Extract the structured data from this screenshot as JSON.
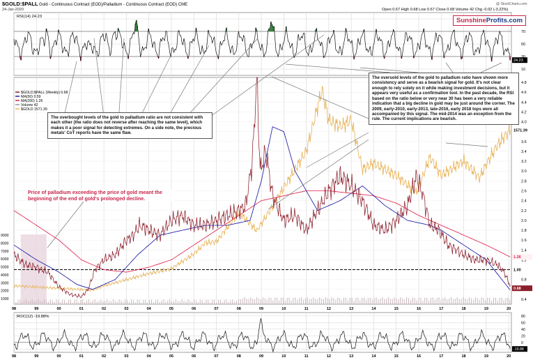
{
  "header": {
    "symbol": "$GOLD:$PALL",
    "subtitle": "Gold - Continuous Contract (EOD)/Palladium - Continuous Contract (EOD)  CME",
    "date": "24-Jan-2020",
    "quote": "Open 0.67  High 0.68  Low 0.67  Close 0.68  Volume 42  Chg -0.02 (-3.22%)",
    "credit": "@ StockCharts.com"
  },
  "logo": {
    "part1": "Sunshine",
    "part2": "Profits.com",
    "color1": "#c8264b",
    "color2": "#1f3b88"
  },
  "annotations": {
    "overbought": "The overbought levels of the gold to palladium ratio are not consistent with each other (the ratio does not reverse after reaching the same level), which makes it a poor signal for detecting extremes. On a side note, the precious metals' CoT reports have the same flaw.",
    "oversold": "The oversold levels of the gold to palladium ratio have shown more consistency and serve as a bearish signal for gold. It's not clear enough to rely solely on it while making investment decisions, but it appears very useful as a confirmation tool. In the past decade, the RSI based on the ratio below or very near 30 has been a very reliable indication that a big decline in gold may be just around the corner. The 2009, early-2010, early-2013, late-2016, early 2018 tops were all accompanied by this signal. The mid-2014 was an exception from the rule. The current implications are bearish.",
    "palladium_note": "Price of palladium exceeding the price of gold meant the beginning of the end of gold's prolonged decline."
  },
  "colors": {
    "ratio": "#8b1e2b",
    "ma50": "#1a1aa8",
    "ma200": "#e0224a",
    "gold": "#e8b45a",
    "grid": "#d6d6d6",
    "accent": "#c8264b",
    "rsi_fill_ob": "#2f7d3a",
    "rsi_fill_os": "#c8264b"
  },
  "chart_data": [
    {
      "type": "line",
      "panel": "RSI",
      "legend": "RSI(14) 24.23",
      "ylim": [
        0,
        100
      ],
      "yticks": [
        "90",
        "70",
        "50",
        "30",
        "10"
      ],
      "reference_lines": [
        70,
        30
      ],
      "last_value": 24.23,
      "overbought_years": [
        1999,
        2002,
        2003,
        2009
      ],
      "oversold_years": [
        1999,
        2001
      ]
    },
    {
      "type": "line",
      "panel": "Main",
      "legend": [
        {
          "label": "$GOLD:$PALL (Weekly) 0.68",
          "color": "#8b1e2b"
        },
        {
          "label": "MA(50) 0.59",
          "color": "#1a1aa8"
        },
        {
          "label": "MA(200) 1.26",
          "color": "#e0224a"
        },
        {
          "label": "Volume 42",
          "color": "#999999"
        },
        {
          "label": "$GOLD 1571.39",
          "color": "#e8b45a"
        }
      ],
      "ylim_right": [
        0.3,
        4.9
      ],
      "right_ticks": [
        "4.8",
        "4.6",
        "4.4",
        "4.2",
        "4.0",
        "3.8",
        "3.6",
        "3.4",
        "3.2",
        "3.0",
        "2.8",
        "2.6",
        "2.4",
        "2.2",
        "2.0",
        "1.8",
        "1.6",
        "1.4",
        "1.2",
        "1.0",
        "0.8",
        "0.6",
        "0.4"
      ],
      "left_ticks": [
        "9000",
        "8000",
        "7000",
        "6000",
        "5000",
        "4000",
        "3000",
        "2000",
        "1000"
      ],
      "right_labels": {
        "gold": "1571.39",
        "ma200": "1.26",
        "ratio": "0.68",
        "parity": "1.00"
      },
      "parity_line": 1.0,
      "x_years": [
        "98",
        "99",
        "00",
        "01",
        "02",
        "03",
        "04",
        "05",
        "06",
        "07",
        "08",
        "09",
        "10",
        "11",
        "12",
        "13",
        "14",
        "15",
        "16",
        "17",
        "18",
        "19",
        "20"
      ],
      "series": [
        {
          "name": "$GOLD:$PALL",
          "x": [
            1998.0,
            1998.5,
            1999.0,
            1999.5,
            2000.0,
            2000.5,
            2001.0,
            2001.3,
            2001.6,
            2002.0,
            2002.5,
            2003.0,
            2003.3,
            2003.6,
            2004.0,
            2004.5,
            2005.0,
            2005.5,
            2006.0,
            2006.5,
            2007.0,
            2007.5,
            2008.0,
            2008.3,
            2008.6,
            2008.8,
            2008.95,
            2009.2,
            2009.5,
            2010.0,
            2010.5,
            2011.0,
            2011.5,
            2012.0,
            2012.5,
            2013.0,
            2013.5,
            2014.0,
            2014.5,
            2015.0,
            2015.5,
            2015.9,
            2016.2,
            2016.5,
            2016.9,
            2017.3,
            2017.7,
            2018.0,
            2018.5,
            2019.0,
            2019.5,
            2019.8,
            2020.06
          ],
          "values": [
            1.3,
            1.1,
            1.05,
            0.95,
            0.65,
            0.5,
            0.45,
            0.6,
            1.0,
            1.2,
            1.3,
            1.6,
            1.7,
            1.9,
            1.8,
            1.7,
            2.0,
            2.1,
            1.9,
            1.9,
            2.0,
            2.1,
            2.2,
            2.3,
            3.2,
            4.9,
            3.0,
            3.4,
            2.5,
            2.0,
            2.1,
            1.8,
            2.2,
            2.6,
            2.9,
            2.7,
            2.4,
            1.9,
            1.8,
            2.0,
            2.3,
            2.9,
            2.5,
            1.9,
            1.8,
            1.5,
            1.4,
            1.3,
            1.2,
            1.2,
            1.1,
            0.95,
            0.68
          ]
        },
        {
          "name": "MA(50)",
          "x": [
            1998.0,
            1999.0,
            2000.0,
            2000.8,
            2001.5,
            2002.5,
            2003.5,
            2004.5,
            2005.5,
            2006.5,
            2007.5,
            2008.5,
            2009.0,
            2009.5,
            2010.0,
            2010.5,
            2011.5,
            2012.5,
            2013.5,
            2014.5,
            2015.5,
            2016.5,
            2017.0,
            2018.0,
            2019.0,
            2020.06
          ],
          "values": [
            1.5,
            1.2,
            0.95,
            0.7,
            0.6,
            0.8,
            1.3,
            1.7,
            1.8,
            1.9,
            1.9,
            2.0,
            2.8,
            3.9,
            3.8,
            3.0,
            2.2,
            2.4,
            2.7,
            2.3,
            2.0,
            1.9,
            1.8,
            1.5,
            1.2,
            0.59
          ]
        },
        {
          "name": "MA(200)",
          "x": [
            1998.0,
            1999.0,
            2000.0,
            2001.0,
            2002.0,
            2003.0,
            2004.0,
            2005.0,
            2006.0,
            2007.0,
            2008.0,
            2009.0,
            2010.0,
            2011.0,
            2012.0,
            2013.0,
            2014.0,
            2015.0,
            2016.0,
            2017.0,
            2018.0,
            2019.0,
            2020.06
          ],
          "values": [
            2.2,
            1.9,
            1.6,
            1.2,
            1.0,
            0.95,
            1.05,
            1.2,
            1.5,
            1.8,
            2.1,
            2.4,
            2.5,
            2.6,
            2.6,
            2.55,
            2.5,
            2.35,
            2.1,
            1.9,
            1.7,
            1.5,
            1.26
          ]
        },
        {
          "name": "$GOLD",
          "x": [
            1998.0,
            1999.0,
            2000.0,
            2001.0,
            2001.5,
            2002.0,
            2003.0,
            2004.0,
            2005.0,
            2006.0,
            2006.5,
            2007.0,
            2008.0,
            2008.8,
            2009.5,
            2010.0,
            2010.5,
            2011.0,
            2011.7,
            2012.0,
            2012.5,
            2013.0,
            2013.5,
            2014.0,
            2015.0,
            2015.9,
            2016.5,
            2017.0,
            2018.0,
            2018.7,
            2019.0,
            2019.5,
            2020.06
          ],
          "values": [
            300,
            290,
            280,
            270,
            265,
            300,
            350,
            400,
            440,
            560,
            650,
            660,
            900,
            750,
            950,
            1100,
            1250,
            1400,
            1900,
            1650,
            1600,
            1650,
            1250,
            1300,
            1200,
            1060,
            1350,
            1200,
            1320,
            1180,
            1290,
            1450,
            1571
          ]
        }
      ]
    },
    {
      "type": "line",
      "panel": "ROC",
      "legend": "ROC(12) -19.88%",
      "yticks": [
        "80",
        "60",
        "40",
        "20",
        "0",
        "-20"
      ],
      "ylim": [
        -30,
        90
      ],
      "last_value": -19.88
    }
  ]
}
